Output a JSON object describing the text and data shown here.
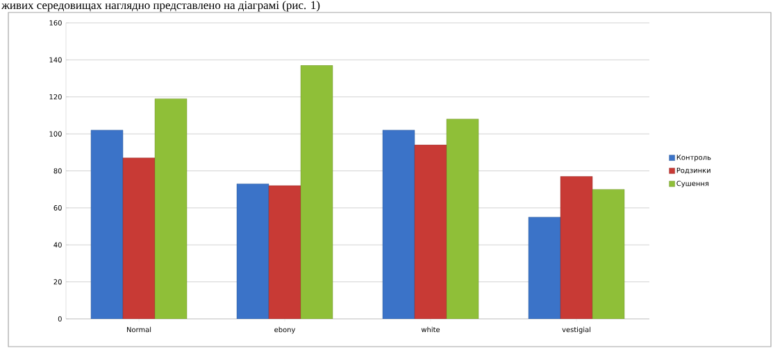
{
  "chart_data": {
    "type": "bar",
    "annotations": [
      "живих середовищах наглядно представлено на діаграмі (рис. 1)"
    ],
    "categories": [
      "Normal",
      "ebony",
      "white",
      "vestigial"
    ],
    "series": [
      {
        "name": "Контроль",
        "color": "#3b73c8",
        "values": [
          102,
          73,
          102,
          55
        ]
      },
      {
        "name": "Родзинки",
        "color": "#c83a35",
        "values": [
          87,
          72,
          94,
          77
        ]
      },
      {
        "name": "Сушення",
        "color": "#8fbf38",
        "values": [
          119,
          137,
          108,
          70
        ]
      }
    ],
    "ylim": [
      0,
      160
    ],
    "yticks": [
      0,
      20,
      40,
      60,
      80,
      100,
      120,
      140,
      160
    ],
    "grid": "y",
    "legend": "right"
  }
}
